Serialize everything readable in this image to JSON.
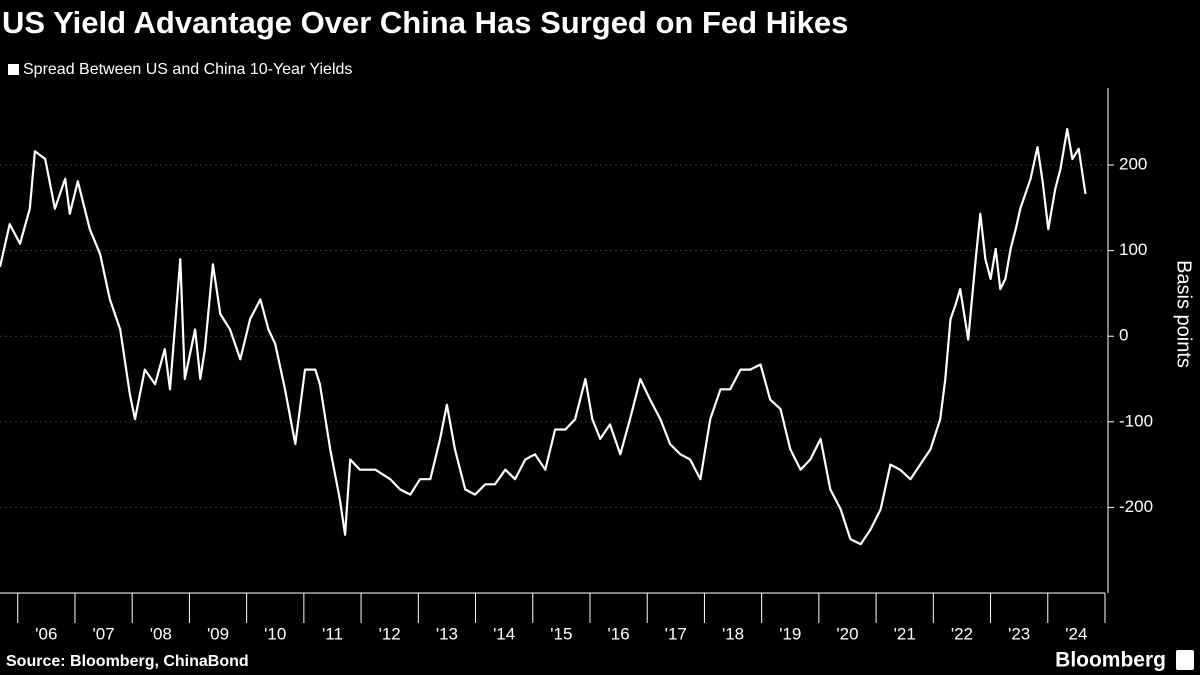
{
  "chart_data": {
    "type": "line",
    "title": "US Yield Advantage Over China Has Surged on Fed Hikes",
    "y_label": "Basis points",
    "source": "Source: Bloomberg, ChinaBond",
    "brand": "Bloomberg",
    "grid": true,
    "xlim": [
      2005.69,
      2025
    ],
    "xticks": [
      {
        "value": 2006.5,
        "label": "'06"
      },
      {
        "value": 2007.5,
        "label": "'07"
      },
      {
        "value": 2008.5,
        "label": "'08"
      },
      {
        "value": 2009.5,
        "label": "'09"
      },
      {
        "value": 2010.5,
        "label": "'10"
      },
      {
        "value": 2011.5,
        "label": "'11"
      },
      {
        "value": 2012.5,
        "label": "'12"
      },
      {
        "value": 2013.5,
        "label": "'13"
      },
      {
        "value": 2014.5,
        "label": "'14"
      },
      {
        "value": 2015.5,
        "label": "'15"
      },
      {
        "value": 2016.5,
        "label": "'16"
      },
      {
        "value": 2017.5,
        "label": "'17"
      },
      {
        "value": 2018.5,
        "label": "'18"
      },
      {
        "value": 2019.5,
        "label": "'19"
      },
      {
        "value": 2020.5,
        "label": "'20"
      },
      {
        "value": 2021.5,
        "label": "'21"
      },
      {
        "value": 2022.5,
        "label": "'22"
      },
      {
        "value": 2023.5,
        "label": "'23"
      },
      {
        "value": 2024.5,
        "label": "'24"
      }
    ],
    "ylim": [
      -300,
      290
    ],
    "yticks": [
      -200,
      -100,
      0,
      100,
      200
    ],
    "x": [
      2005.69,
      2005.86,
      2006.04,
      2006.21,
      2006.3,
      2006.48,
      2006.65,
      2006.83,
      2006.91,
      2007.05,
      2007.26,
      2007.44,
      2007.61,
      2007.79,
      2007.96,
      2008.05,
      2008.22,
      2008.4,
      2008.57,
      2008.66,
      2008.84,
      2008.92,
      2009.1,
      2009.19,
      2009.27,
      2009.41,
      2009.54,
      2009.71,
      2009.89,
      2010.06,
      2010.24,
      2010.38,
      2010.5,
      2010.67,
      2010.85,
      2011.02,
      2011.2,
      2011.28,
      2011.46,
      2011.63,
      2011.72,
      2011.81,
      2011.98,
      2012.25,
      2012.51,
      2012.68,
      2012.86,
      2013.03,
      2013.21,
      2013.38,
      2013.5,
      2013.64,
      2013.82,
      2013.99,
      2014.17,
      2014.34,
      2014.52,
      2014.69,
      2014.87,
      2015.04,
      2015.22,
      2015.39,
      2015.57,
      2015.74,
      2015.92,
      2016.04,
      2016.18,
      2016.35,
      2016.53,
      2016.7,
      2016.88,
      2017.05,
      2017.23,
      2017.4,
      2017.58,
      2017.75,
      2017.93,
      2018.1,
      2018.28,
      2018.45,
      2018.63,
      2018.8,
      2018.98,
      2019.15,
      2019.33,
      2019.5,
      2019.68,
      2019.85,
      2020.03,
      2020.2,
      2020.38,
      2020.55,
      2020.73,
      2020.9,
      2021.08,
      2021.25,
      2021.42,
      2021.6,
      2021.77,
      2021.95,
      2022.12,
      2022.21,
      2022.3,
      2022.39,
      2022.47,
      2022.61,
      2022.74,
      2022.82,
      2022.91,
      2023.0,
      2023.09,
      2023.17,
      2023.26,
      2023.35,
      2023.44,
      2023.52,
      2023.7,
      2023.82,
      2023.91,
      2024.01,
      2024.13,
      2024.22,
      2024.34,
      2024.43,
      2024.54,
      2024.66
    ],
    "series": [
      {
        "name": "Spread Between US and China 10-Year Yields",
        "color": "#ffffff",
        "values": [
          81,
          131,
          108,
          149,
          216,
          207,
          149,
          184,
          143,
          181,
          125,
          96,
          43,
          8,
          -68,
          -97,
          -39,
          -56,
          -15,
          -62,
          90,
          -50,
          8,
          -50,
          -15,
          84,
          26,
          8,
          -27,
          20,
          43,
          8,
          -9,
          -62,
          -126,
          -39,
          -39,
          -56,
          -132,
          -191,
          -232,
          -144,
          -156,
          -156,
          -167,
          -179,
          -185,
          -167,
          -167,
          -120,
          -80,
          -132,
          -179,
          -185,
          -173,
          -173,
          -156,
          -167,
          -144,
          -138,
          -156,
          -109,
          -109,
          -97,
          -50,
          -97,
          -120,
          -103,
          -138,
          -97,
          -50,
          -74,
          -97,
          -126,
          -138,
          -144,
          -167,
          -97,
          -62,
          -62,
          -39,
          -39,
          -33,
          -74,
          -85,
          -132,
          -156,
          -144,
          -120,
          -179,
          -202,
          -237,
          -243,
          -226,
          -202,
          -150,
          -156,
          -167,
          -150,
          -132,
          -97,
          -50,
          20,
          37,
          55,
          -4,
          90,
          143,
          90,
          67,
          102,
          55,
          67,
          102,
          125,
          149,
          184,
          221,
          181,
          125,
          172,
          195,
          242,
          207,
          219,
          166
        ]
      }
    ]
  }
}
